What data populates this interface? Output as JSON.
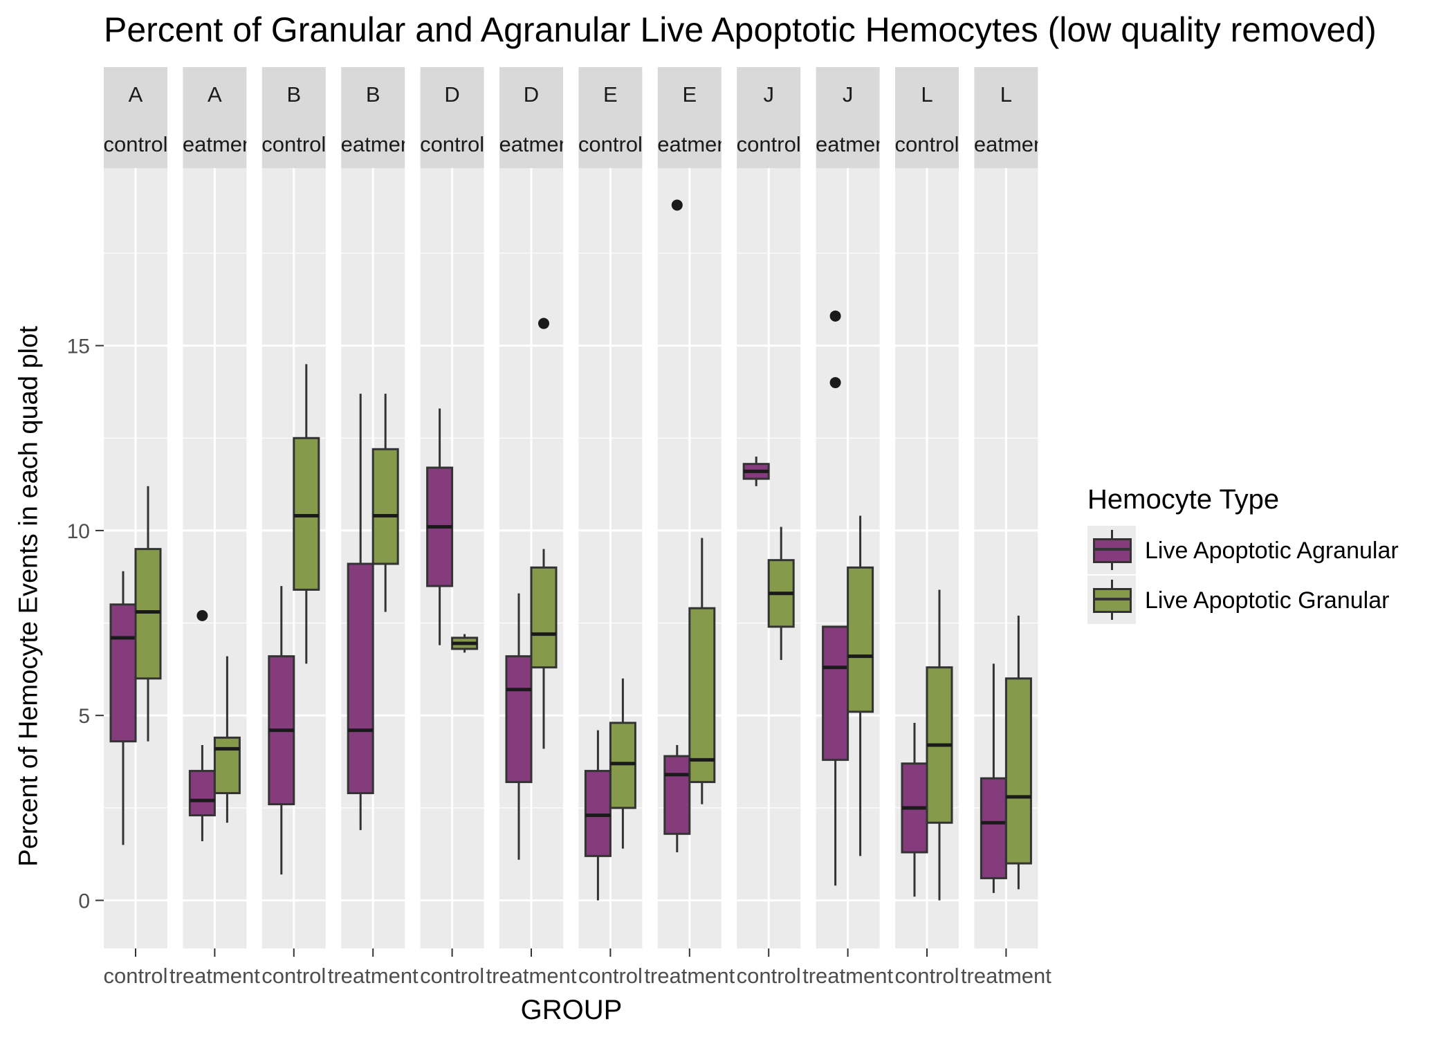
{
  "chart_data": {
    "type": "box",
    "title": "Percent of Granular and Agranular Live Apoptotic Hemocytes (low quality removed)",
    "xlabel": "GROUP",
    "ylabel": "Percent of Hemocyte Events in each quad plot",
    "ylim": [
      -1.3,
      19.8
    ],
    "y_ticks": [
      0,
      5,
      10,
      15
    ],
    "grid": true,
    "legend_title": "Hemocyte Type",
    "legend_position": "right",
    "series": [
      {
        "name": "Live Apoptotic Agranular",
        "color": "#843c7c"
      },
      {
        "name": "Live Apoptotic Granular",
        "color": "#869a4c"
      }
    ],
    "panels": [
      {
        "strip_top": "A",
        "strip_bottom": "control",
        "x_label": "control",
        "boxes": [
          {
            "series": "Live Apoptotic Agranular",
            "min": 1.5,
            "q1": 4.3,
            "median": 7.1,
            "q3": 8.0,
            "max": 8.9,
            "outliers": []
          },
          {
            "series": "Live Apoptotic Granular",
            "min": 4.3,
            "q1": 6.0,
            "median": 7.8,
            "q3": 9.5,
            "max": 11.2,
            "outliers": []
          }
        ]
      },
      {
        "strip_top": "A",
        "strip_bottom": "treatment",
        "x_label": "treatment",
        "boxes": [
          {
            "series": "Live Apoptotic Agranular",
            "min": 1.6,
            "q1": 2.3,
            "median": 2.7,
            "q3": 3.5,
            "max": 4.2,
            "outliers": [
              7.7
            ]
          },
          {
            "series": "Live Apoptotic Granular",
            "min": 2.1,
            "q1": 2.9,
            "median": 4.1,
            "q3": 4.4,
            "max": 6.6,
            "outliers": []
          }
        ]
      },
      {
        "strip_top": "B",
        "strip_bottom": "control",
        "x_label": "control",
        "boxes": [
          {
            "series": "Live Apoptotic Agranular",
            "min": 0.7,
            "q1": 2.6,
            "median": 4.6,
            "q3": 6.6,
            "max": 8.5,
            "outliers": []
          },
          {
            "series": "Live Apoptotic Granular",
            "min": 6.4,
            "q1": 8.4,
            "median": 10.4,
            "q3": 12.5,
            "max": 14.5,
            "outliers": []
          }
        ]
      },
      {
        "strip_top": "B",
        "strip_bottom": "treatment",
        "x_label": "treatment",
        "boxes": [
          {
            "series": "Live Apoptotic Agranular",
            "min": 1.9,
            "q1": 2.9,
            "median": 4.6,
            "q3": 9.1,
            "max": 13.7,
            "outliers": []
          },
          {
            "series": "Live Apoptotic Granular",
            "min": 7.8,
            "q1": 9.1,
            "median": 10.4,
            "q3": 12.2,
            "max": 13.7,
            "outliers": []
          }
        ]
      },
      {
        "strip_top": "D",
        "strip_bottom": "control",
        "x_label": "control",
        "boxes": [
          {
            "series": "Live Apoptotic Agranular",
            "min": 6.9,
            "q1": 8.5,
            "median": 10.1,
            "q3": 11.7,
            "max": 13.3,
            "outliers": []
          },
          {
            "series": "Live Apoptotic Granular",
            "min": 6.7,
            "q1": 6.8,
            "median": 6.95,
            "q3": 7.1,
            "max": 7.2,
            "outliers": []
          }
        ]
      },
      {
        "strip_top": "D",
        "strip_bottom": "treatment",
        "x_label": "treatment",
        "boxes": [
          {
            "series": "Live Apoptotic Agranular",
            "min": 1.1,
            "q1": 3.2,
            "median": 5.7,
            "q3": 6.6,
            "max": 8.3,
            "outliers": []
          },
          {
            "series": "Live Apoptotic Granular",
            "min": 4.1,
            "q1": 6.3,
            "median": 7.2,
            "q3": 9.0,
            "max": 9.5,
            "outliers": [
              15.6
            ]
          }
        ]
      },
      {
        "strip_top": "E",
        "strip_bottom": "control",
        "x_label": "control",
        "boxes": [
          {
            "series": "Live Apoptotic Agranular",
            "min": 0.0,
            "q1": 1.2,
            "median": 2.3,
            "q3": 3.5,
            "max": 4.6,
            "outliers": []
          },
          {
            "series": "Live Apoptotic Granular",
            "min": 1.4,
            "q1": 2.5,
            "median": 3.7,
            "q3": 4.8,
            "max": 6.0,
            "outliers": []
          }
        ]
      },
      {
        "strip_top": "E",
        "strip_bottom": "treatment",
        "x_label": "treatment",
        "boxes": [
          {
            "series": "Live Apoptotic Agranular",
            "min": 1.3,
            "q1": 1.8,
            "median": 3.4,
            "q3": 3.9,
            "max": 4.2,
            "outliers": [
              18.8
            ]
          },
          {
            "series": "Live Apoptotic Granular",
            "min": 2.6,
            "q1": 3.2,
            "median": 3.8,
            "q3": 7.9,
            "max": 9.8,
            "outliers": []
          }
        ]
      },
      {
        "strip_top": "J",
        "strip_bottom": "control",
        "x_label": "control",
        "boxes": [
          {
            "series": "Live Apoptotic Agranular",
            "min": 11.2,
            "q1": 11.4,
            "median": 11.6,
            "q3": 11.8,
            "max": 12.0,
            "outliers": []
          },
          {
            "series": "Live Apoptotic Granular",
            "min": 6.5,
            "q1": 7.4,
            "median": 8.3,
            "q3": 9.2,
            "max": 10.1,
            "outliers": []
          }
        ]
      },
      {
        "strip_top": "J",
        "strip_bottom": "treatment",
        "x_label": "treatment",
        "boxes": [
          {
            "series": "Live Apoptotic Agranular",
            "min": 0.4,
            "q1": 3.8,
            "median": 6.3,
            "q3": 7.4,
            "max": 7.4,
            "outliers": [
              15.8,
              14.0
            ]
          },
          {
            "series": "Live Apoptotic Granular",
            "min": 1.2,
            "q1": 5.1,
            "median": 6.6,
            "q3": 9.0,
            "max": 10.4,
            "outliers": []
          }
        ]
      },
      {
        "strip_top": "L",
        "strip_bottom": "control",
        "x_label": "control",
        "boxes": [
          {
            "series": "Live Apoptotic Agranular",
            "min": 0.1,
            "q1": 1.3,
            "median": 2.5,
            "q3": 3.7,
            "max": 4.8,
            "outliers": []
          },
          {
            "series": "Live Apoptotic Granular",
            "min": 0.0,
            "q1": 2.1,
            "median": 4.2,
            "q3": 6.3,
            "max": 8.4,
            "outliers": []
          }
        ]
      },
      {
        "strip_top": "L",
        "strip_bottom": "treatment",
        "x_label": "treatment",
        "boxes": [
          {
            "series": "Live Apoptotic Agranular",
            "min": 0.2,
            "q1": 0.6,
            "median": 2.1,
            "q3": 3.3,
            "max": 6.4,
            "outliers": []
          },
          {
            "series": "Live Apoptotic Granular",
            "min": 0.3,
            "q1": 1.0,
            "median": 2.8,
            "q3": 6.0,
            "max": 7.7,
            "outliers": []
          }
        ]
      }
    ]
  }
}
